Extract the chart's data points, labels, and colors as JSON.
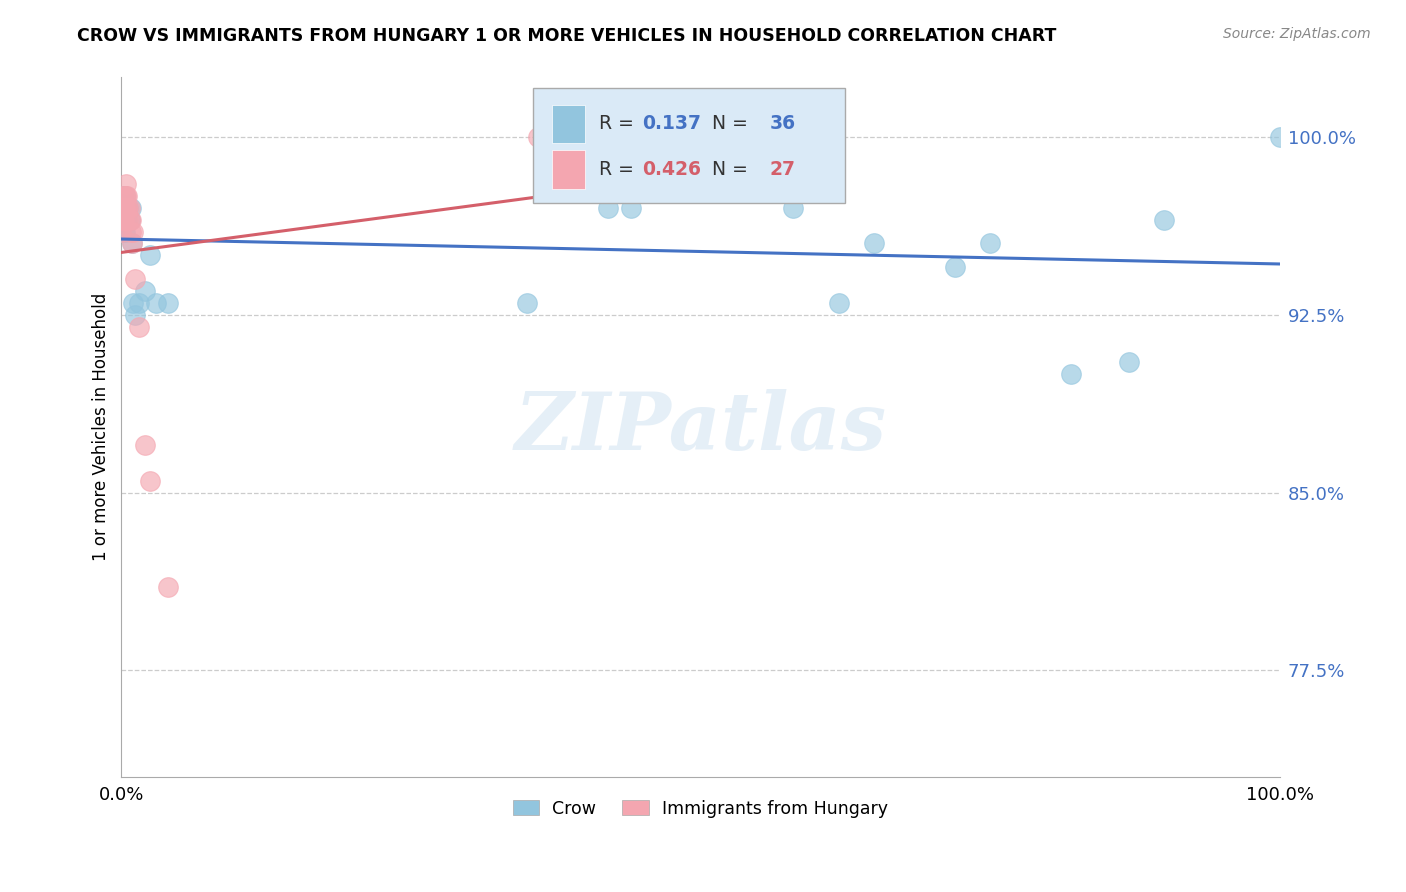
{
  "title": "CROW VS IMMIGRANTS FROM HUNGARY 1 OR MORE VEHICLES IN HOUSEHOLD CORRELATION CHART",
  "source": "Source: ZipAtlas.com",
  "ylabel": "1 or more Vehicles in Household",
  "crow_R": 0.137,
  "crow_N": 36,
  "hungary_R": 0.426,
  "hungary_N": 27,
  "crow_color": "#92c5de",
  "hungary_color": "#f4a6b0",
  "crow_line_color": "#4472c4",
  "hungary_line_color": "#d45f6a",
  "legend_box_color": "#daeaf7",
  "crow_points_x": [
    0.0,
    0.0,
    0.001,
    0.001,
    0.002,
    0.002,
    0.003,
    0.003,
    0.003,
    0.004,
    0.004,
    0.005,
    0.005,
    0.006,
    0.007,
    0.008,
    0.009,
    0.01,
    0.012,
    0.015,
    0.02,
    0.025,
    0.03,
    0.04,
    0.35,
    0.42,
    0.44,
    0.58,
    0.62,
    0.65,
    0.72,
    0.75,
    0.82,
    0.87,
    0.9,
    1.0
  ],
  "crow_points_y": [
    0.96,
    0.97,
    0.965,
    0.975,
    0.96,
    0.97,
    0.97,
    0.975,
    0.96,
    0.97,
    0.965,
    0.965,
    0.97,
    0.97,
    0.965,
    0.97,
    0.955,
    0.93,
    0.925,
    0.93,
    0.935,
    0.95,
    0.93,
    0.93,
    0.93,
    0.97,
    0.97,
    0.97,
    0.93,
    0.955,
    0.945,
    0.955,
    0.9,
    0.905,
    0.965,
    1.0
  ],
  "hungary_points_x": [
    0.0,
    0.0,
    0.001,
    0.001,
    0.001,
    0.002,
    0.002,
    0.003,
    0.003,
    0.004,
    0.004,
    0.005,
    0.005,
    0.006,
    0.006,
    0.007,
    0.007,
    0.008,
    0.008,
    0.009,
    0.01,
    0.012,
    0.015,
    0.02,
    0.025,
    0.04,
    0.36
  ],
  "hungary_points_y": [
    0.96,
    0.965,
    0.965,
    0.97,
    0.975,
    0.965,
    0.97,
    0.97,
    0.975,
    0.975,
    0.98,
    0.975,
    0.97,
    0.965,
    0.97,
    0.97,
    0.965,
    0.965,
    0.96,
    0.955,
    0.96,
    0.94,
    0.92,
    0.87,
    0.855,
    0.81,
    1.0
  ],
  "background_color": "#ffffff",
  "watermark_text": "ZIPatlas",
  "xlim": [
    0.0,
    1.0
  ],
  "ylim": [
    0.73,
    1.025
  ],
  "y_tick_positions": [
    0.775,
    0.85,
    0.925,
    1.0
  ],
  "y_tick_labels": [
    "77.5%",
    "85.0%",
    "92.5%",
    "100.0%"
  ]
}
